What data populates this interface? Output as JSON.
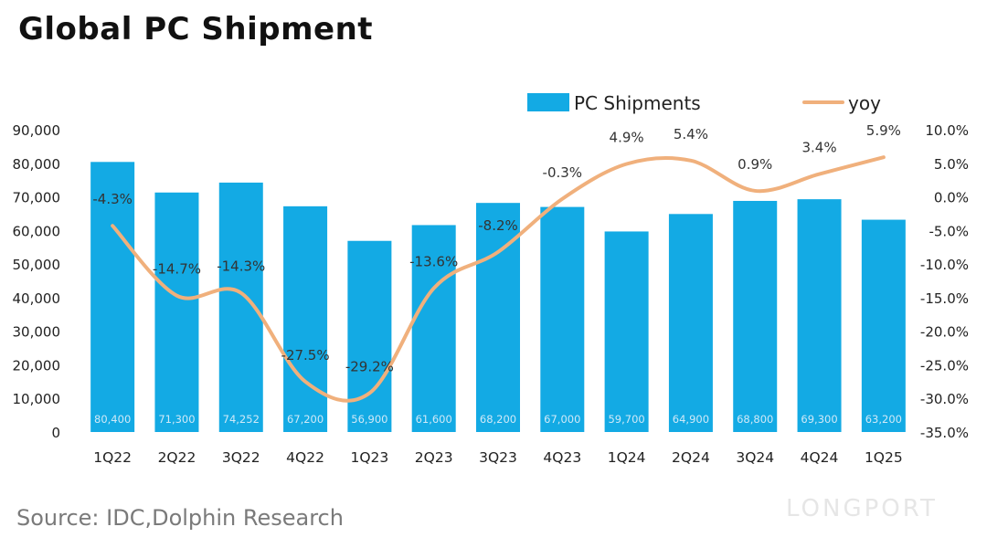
{
  "title": "Global PC Shipment",
  "source": "Source: IDC,Dolphin Research",
  "watermark": "LONGPORT",
  "colors": {
    "bar": "#13aae4",
    "line": "#f0b07c"
  },
  "chart_data": {
    "type": "bar",
    "title": "Global PC Shipment",
    "categories": [
      "1Q22",
      "2Q22",
      "3Q22",
      "4Q22",
      "1Q23",
      "2Q23",
      "3Q23",
      "4Q23",
      "1Q24",
      "2Q24",
      "3Q24",
      "4Q24",
      "1Q25"
    ],
    "series": [
      {
        "name": "PC Shipments",
        "type": "bar",
        "axis": "left",
        "values": [
          80400,
          71300,
          74252,
          67200,
          56900,
          61600,
          68200,
          67000,
          59700,
          64900,
          68800,
          69300,
          63200
        ],
        "labels": [
          "80,400",
          "71,300",
          "74,252",
          "67,200",
          "56,900",
          "61,600",
          "68,200",
          "67,000",
          "59,700",
          "64,900",
          "68,800",
          "69,300",
          "63,200"
        ]
      },
      {
        "name": "yoy",
        "type": "line",
        "axis": "right",
        "values": [
          -4.3,
          -14.7,
          -14.3,
          -27.5,
          -29.2,
          -13.6,
          -8.2,
          -0.3,
          4.9,
          5.4,
          0.9,
          3.4,
          5.9
        ],
        "labels": [
          "-4.3%",
          "-14.7%",
          "-14.3%",
          "-27.5%",
          "-29.2%",
          "-13.6%",
          "-8.2%",
          "-0.3%",
          "4.9%",
          "5.4%",
          "0.9%",
          "3.4%",
          "5.9%"
        ]
      }
    ],
    "left_axis": {
      "ylim": [
        0,
        90000
      ],
      "ticks": [
        0,
        10000,
        20000,
        30000,
        40000,
        50000,
        60000,
        70000,
        80000,
        90000
      ],
      "tick_labels": [
        "0",
        "10,000",
        "20,000",
        "30,000",
        "40,000",
        "50,000",
        "60,000",
        "70,000",
        "80,000",
        "90,000"
      ]
    },
    "right_axis": {
      "ylim": [
        -35,
        10
      ],
      "ticks": [
        10,
        5,
        0,
        -5,
        -10,
        -15,
        -20,
        -25,
        -30,
        -35
      ],
      "tick_labels": [
        "10.0%",
        "5.0%",
        "0.0%",
        "-5.0%",
        "-10.0%",
        "-15.0%",
        "-20.0%",
        "-25.0%",
        "-30.0%",
        "-35.0%"
      ]
    },
    "legend": {
      "position": "top-right",
      "entries": [
        "PC Shipments",
        "yoy"
      ]
    },
    "grid": false
  }
}
